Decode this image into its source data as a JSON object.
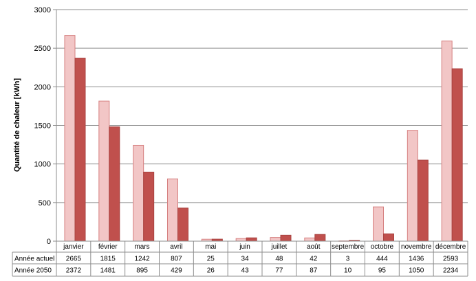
{
  "chart_data": {
    "type": "bar",
    "ylabel": "Quantité de chaleur [kWh]",
    "ylim": [
      0,
      3000
    ],
    "yticks": [
      0,
      500,
      1000,
      1500,
      2000,
      2500,
      3000
    ],
    "grid": true,
    "legend": "table-below",
    "categories": [
      "janvier",
      "février",
      "mars",
      "avril",
      "mai",
      "juin",
      "juillet",
      "août",
      "septembre",
      "octobre",
      "novembre",
      "décembre"
    ],
    "series": [
      {
        "name": "Année actuel",
        "values": [
          2665,
          1815,
          1242,
          807,
          25,
          34,
          48,
          42,
          3,
          444,
          1436,
          2593
        ],
        "fill": "#f2c6c6",
        "stroke": "#d68080"
      },
      {
        "name": "Année 2050",
        "values": [
          2372,
          1481,
          895,
          429,
          26,
          43,
          77,
          87,
          10,
          95,
          1050,
          2234
        ],
        "fill": "#c0504d",
        "stroke": "#a94340"
      }
    ]
  }
}
